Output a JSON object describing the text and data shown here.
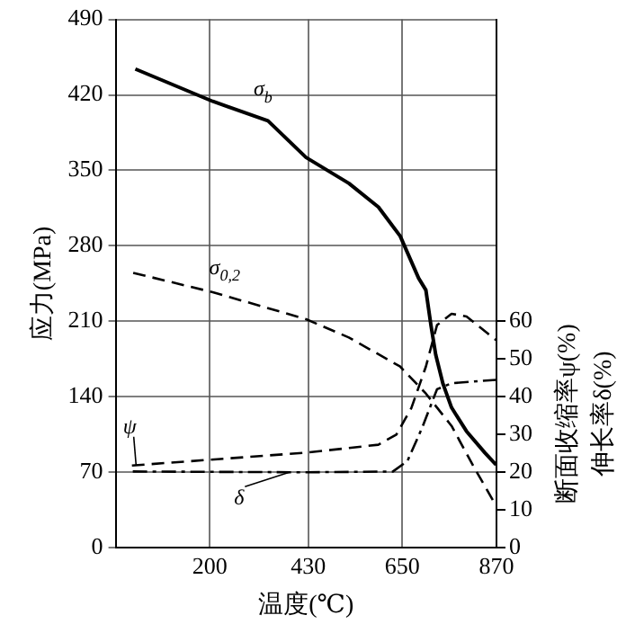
{
  "chart_data": {
    "type": "line",
    "xlabel": "温度(℃)",
    "ylabel": "应力(MPa)",
    "y2label": "断面收缩率ψ(%)\n伸长率δ(%)",
    "xlim": [
      -20,
      870
    ],
    "xticks": [
      200,
      430,
      650,
      870
    ],
    "ylim": [
      0,
      490
    ],
    "yticks": [
      0,
      70,
      140,
      210,
      280,
      350,
      420,
      490
    ],
    "y2lim": [
      0,
      140
    ],
    "y2ticks": [
      0,
      10,
      20,
      30,
      40,
      50,
      60
    ],
    "grid": true,
    "legend": false,
    "marker": "none",
    "series": [
      {
        "name": "σ$_{b}$",
        "color": "#000000",
        "line_style": "solid",
        "x": [
          26,
          207,
          336,
          425,
          525,
          594,
          645,
          688,
          705,
          717,
          728,
          745,
          765,
          800,
          843,
          869
        ],
        "values": [
          444,
          414,
          396,
          362,
          338,
          316,
          289,
          250,
          239,
          206,
          179,
          152,
          130,
          108,
          88,
          77
        ]
      },
      {
        "name": "σ$_{0,2}$",
        "color": "#000000",
        "line_style": "dashed",
        "x": [
          21,
          207,
          425,
          525,
          645,
          705,
          765,
          817,
          869
        ],
        "values": [
          255,
          237,
          212,
          195,
          168,
          143,
          113,
          75,
          39
        ]
      },
      {
        "name": "ψ",
        "color": "#000000",
        "line_style": "dashed",
        "axis": "y2",
        "x": [
          18,
          425,
          594,
          636,
          671,
          705,
          731,
          765,
          800,
          869
        ],
        "values": [
          21.8,
          25.2,
          27.3,
          30,
          37,
          48,
          59,
          62,
          61.3,
          55
        ]
      },
      {
        "name": "δ",
        "color": "#000000",
        "line_style": "dashdot",
        "axis": "y2",
        "x": [
          20,
          425,
          628,
          662,
          697,
          731,
          765,
          869
        ],
        "values": [
          20.2,
          20,
          20.2,
          23,
          32,
          42,
          43.6,
          44.5
        ]
      }
    ]
  }
}
